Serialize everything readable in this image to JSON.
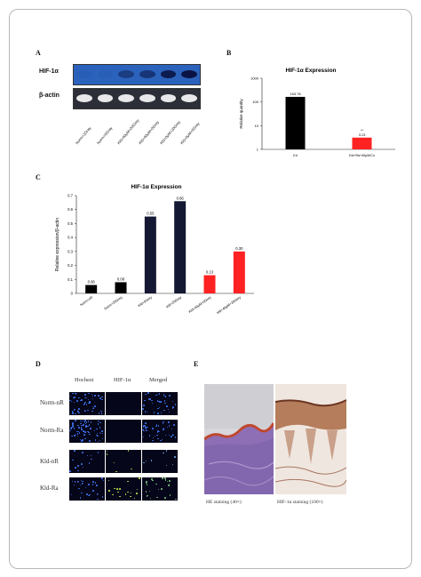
{
  "panels": {
    "a": {
      "label": "A",
      "row_labels": [
        "HIF-1α",
        "β-actin"
      ],
      "lanes": [
        "Norm+2Gray",
        "Norm+0Gray",
        "Kld+40μM+20Grey",
        "Kld+40μM+0Grey",
        "Kld+0μM+20Grey",
        "Kld+0μM+0Grey"
      ],
      "hif_intensity": [
        0.05,
        0.05,
        0.45,
        0.55,
        0.85,
        0.95
      ]
    },
    "b": {
      "label": "B"
    },
    "c": {
      "label": "C"
    },
    "d": {
      "label": "D",
      "columns": [
        "Hochest",
        "HIF-1α",
        "Merged"
      ],
      "rows": [
        "Norm-nR",
        "Norm-Ra",
        "Kld-nR",
        "Kld-Ra"
      ]
    },
    "e": {
      "label": "E",
      "captions": [
        "HE staining (40×)",
        "HIF-1α staining (100×)"
      ]
    }
  },
  "chart_data": [
    {
      "type": "bar",
      "title": "HIF-1α Expression",
      "ylabel": "Relative quantity",
      "categories": [
        "Kd",
        "Kld+Ra+40μM/Cu"
      ],
      "values": [
        163.78,
        3.13
      ],
      "value_labels": [
        "163.78",
        "3.13"
      ],
      "annotation": "**",
      "yscale": "log",
      "ylim": [
        1,
        1000
      ],
      "yticks": [
        1,
        10,
        100,
        1000
      ],
      "colors": [
        "#000000",
        "#ff2222"
      ],
      "grid": false
    },
    {
      "type": "bar",
      "title": "HIF-1α Expression",
      "ylabel": "Relative expression/β-actin",
      "categories": [
        "Norm+nR",
        "Norm+20Grey",
        "Kld+0Grey",
        "Kld+20Grey",
        "Kld+40μM+0Grey",
        "Kld+40μM+20Grey"
      ],
      "values": [
        0.06,
        0.08,
        0.55,
        0.66,
        0.13,
        0.3
      ],
      "value_labels": [
        "0.06",
        "0.08",
        "0.55",
        "0.66",
        "0.13",
        "0.30"
      ],
      "yticks": [
        0,
        0.1,
        0.2,
        0.3,
        0.4,
        0.5,
        0.6,
        0.7
      ],
      "ylim": [
        0,
        0.7
      ],
      "colors": [
        "#000000",
        "#000000",
        "#141832",
        "#141832",
        "#ff2222",
        "#ff2222"
      ],
      "grid": false
    }
  ]
}
